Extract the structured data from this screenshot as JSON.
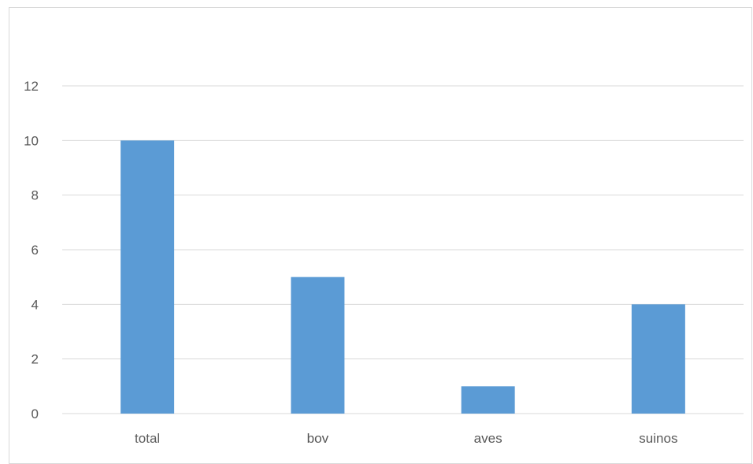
{
  "chart_data": {
    "type": "bar",
    "title": "",
    "xlabel": "",
    "ylabel": "",
    "categories": [
      "total",
      "bov",
      "aves",
      "suinos"
    ],
    "values": [
      10,
      5,
      1,
      4
    ],
    "ylim": [
      0,
      12
    ],
    "yticks": [
      "0",
      "2",
      "4",
      "6",
      "8",
      "10",
      "12"
    ],
    "grid": true,
    "legend": "none",
    "bar_color": "#5b9bd5",
    "gridline_color": "#d9d9d9",
    "tick_label_color": "#595959"
  }
}
